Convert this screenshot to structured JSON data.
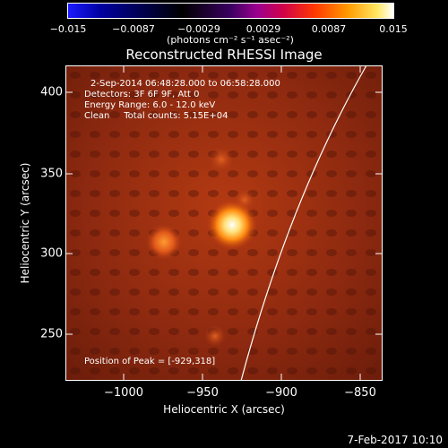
{
  "colorbar": {
    "tick_labels": [
      "−0.015",
      "−0.0087",
      "−0.0029",
      "0.0029",
      "0.0087",
      "0.015"
    ],
    "unit_label": "(photons cm⁻² s⁻¹ asec⁻²)"
  },
  "title": "Reconstructed RHESSI Image",
  "annotations": {
    "time_range": "2-Sep-2014 06:48:28.000 to 06:58:28.000",
    "detectors": "Detectors: 3F 6F 9F, Att 0",
    "energy_range": "Energy Range: 6.0 - 12.0 keV",
    "method_counts": "Clean     Total counts: 5.15E+04",
    "peak_position": "Position of Peak = [-929,318]"
  },
  "axes": {
    "x_label": "Heliocentric X (arcsec)",
    "y_label": "Heliocentric Y (arcsec)",
    "x_ticks": [
      "−1000",
      "−950",
      "−900",
      "−850"
    ],
    "y_ticks": [
      "250",
      "300",
      "350",
      "400"
    ]
  },
  "footer": "7-Feb-2017 10:10",
  "colors": {
    "background": "#000000",
    "text": "#ffffff",
    "limb": "#ffffff"
  }
}
